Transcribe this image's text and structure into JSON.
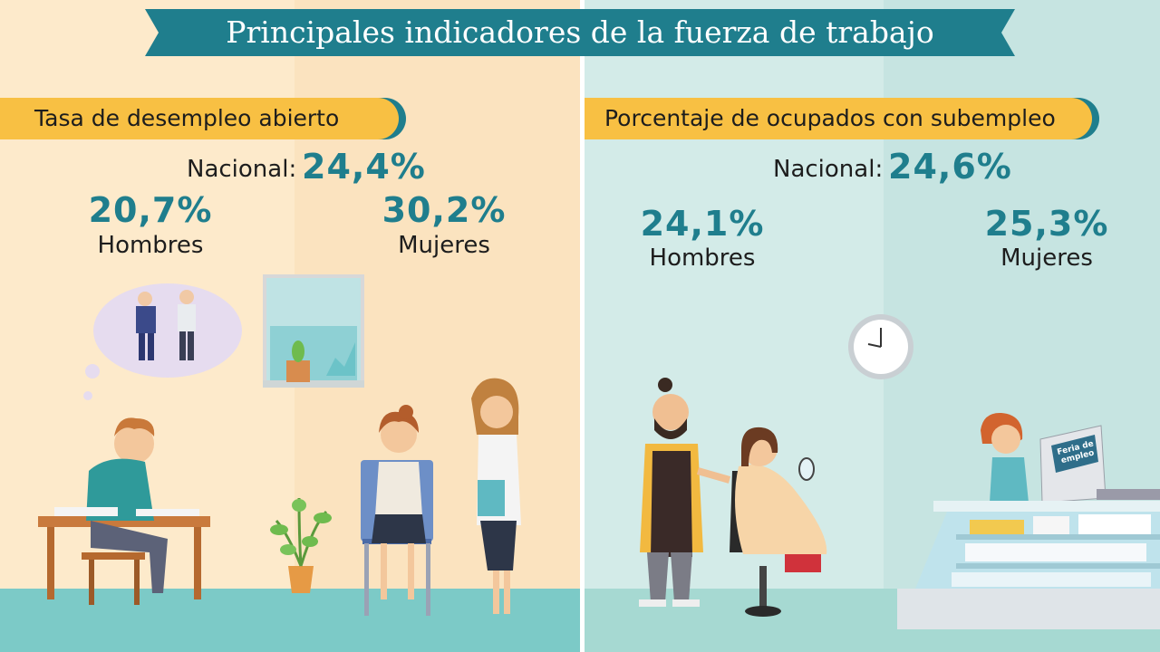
{
  "title": "Principales indicadores de la fuerza de trabajo",
  "left": {
    "heading": "Tasa de desempleo abierto",
    "national_label": "Nacional:",
    "national_value": "24,4%",
    "men_value": "20,7%",
    "men_label": "Hombres",
    "women_value": "30,2%",
    "women_label": "Mujeres"
  },
  "right": {
    "heading": "Porcentaje de ocupados con subempleo",
    "national_label": "Nacional:",
    "national_value": "24,6%",
    "men_value": "24,1%",
    "men_label": "Hombres",
    "women_value": "25,3%",
    "women_label": "Mujeres"
  },
  "sign_text": "Feria de empleo",
  "colors": {
    "accent": "#1f7e8d",
    "tag": "#f8c043",
    "left_bg": "#fdeacb",
    "right_bg": "#d3ebe8"
  }
}
